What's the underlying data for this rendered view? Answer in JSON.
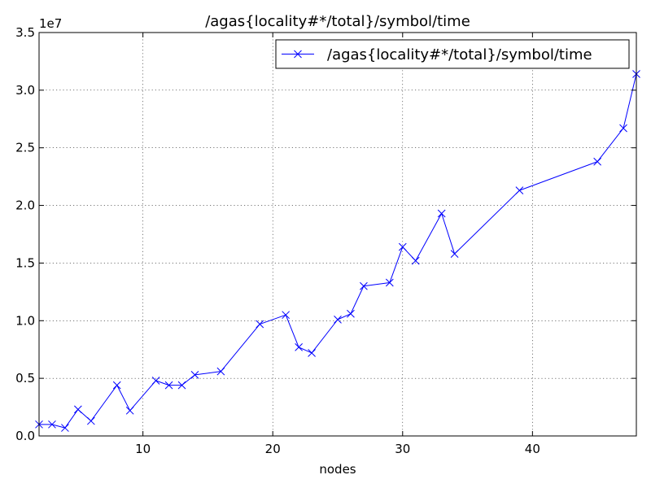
{
  "chart_data": {
    "type": "line",
    "title": "/agas{locality#*/total}/symbol/time",
    "xlabel": "nodes",
    "ylabel": "",
    "y_offset_label": "1e7",
    "xlim": [
      2,
      48
    ],
    "ylim": [
      0,
      35000000
    ],
    "x_ticks": [
      10,
      20,
      30,
      40
    ],
    "y_ticks": [
      0,
      5000000,
      10000000,
      15000000,
      20000000,
      25000000,
      30000000,
      35000000
    ],
    "y_tick_labels": [
      "0.0",
      "0.5",
      "1.0",
      "1.5",
      "2.0",
      "2.5",
      "3.0",
      "3.5"
    ],
    "grid": true,
    "legend_position": "upper-right",
    "series": [
      {
        "name": "/agas{locality#*/total}/symbol/time",
        "color": "#0000ff",
        "marker": "x",
        "x": [
          2,
          3,
          4,
          5,
          6,
          8,
          9,
          11,
          12,
          13,
          14,
          16,
          19,
          21,
          22,
          23,
          25,
          26,
          27,
          29,
          30,
          31,
          33,
          34,
          39,
          45,
          47,
          48
        ],
        "y": [
          1000000,
          1000000,
          700000,
          2300000,
          1300000,
          4400000,
          2200000,
          4800000,
          4400000,
          4400000,
          5300000,
          5600000,
          9700000,
          10500000,
          7700000,
          7200000,
          10100000,
          10600000,
          13000000,
          13300000,
          16400000,
          15200000,
          19300000,
          15800000,
          21300000,
          23800000,
          26700000,
          31400000
        ]
      }
    ]
  }
}
